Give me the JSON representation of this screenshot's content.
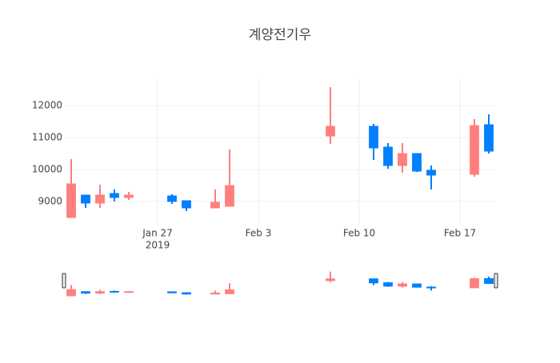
{
  "chart_data": {
    "type": "candlestick",
    "title": "계양전기우",
    "x": [
      "2019-01-21",
      "2019-01-22",
      "2019-01-23",
      "2019-01-24",
      "2019-01-25",
      "2019-01-28",
      "2019-01-29",
      "2019-01-31",
      "2019-02-01",
      "2019-02-08",
      "2019-02-11",
      "2019-02-12",
      "2019-02-13",
      "2019-02-14",
      "2019-02-15",
      "2019-02-18",
      "2019-02-19"
    ],
    "open": [
      8500,
      9200,
      8950,
      9250,
      9125,
      9175,
      9025,
      8800,
      8850,
      11050,
      11350,
      10700,
      10125,
      10500,
      9975,
      9850,
      11400
    ],
    "high": [
      10325,
      9200,
      9525,
      9375,
      9300,
      9225,
      9025,
      9375,
      10625,
      12575,
      11425,
      10825,
      10825,
      10500,
      10125,
      11575,
      11725
    ],
    "low": [
      8500,
      8800,
      8800,
      9000,
      9050,
      8925,
      8700,
      8800,
      8850,
      10800,
      10300,
      10025,
      9900,
      9925,
      9375,
      9775,
      10500
    ],
    "close": [
      9550,
      8950,
      9200,
      9125,
      9200,
      9000,
      8800,
      8975,
      9500,
      11350,
      10675,
      10125,
      10500,
      9950,
      9825,
      11375,
      10575
    ],
    "increasing_color": "#ff7f7f",
    "decreasing_color": "#007fff",
    "xlim": [
      "2019-01-20T12:00",
      "2019-02-19T12:00"
    ],
    "xticks": [
      {
        "value": "2019-01-27",
        "label": "Jan 27"
      },
      {
        "value": "2019-02-03",
        "label": "Feb 3"
      },
      {
        "value": "2019-02-10",
        "label": "Feb 10"
      },
      {
        "value": "2019-02-17",
        "label": "Feb 17"
      }
    ],
    "x_year_label": "2019",
    "ylim": [
      8225,
      12800
    ],
    "yticks": [
      9000,
      10000,
      11000,
      12000
    ],
    "grid": true,
    "rangeslider": true
  }
}
